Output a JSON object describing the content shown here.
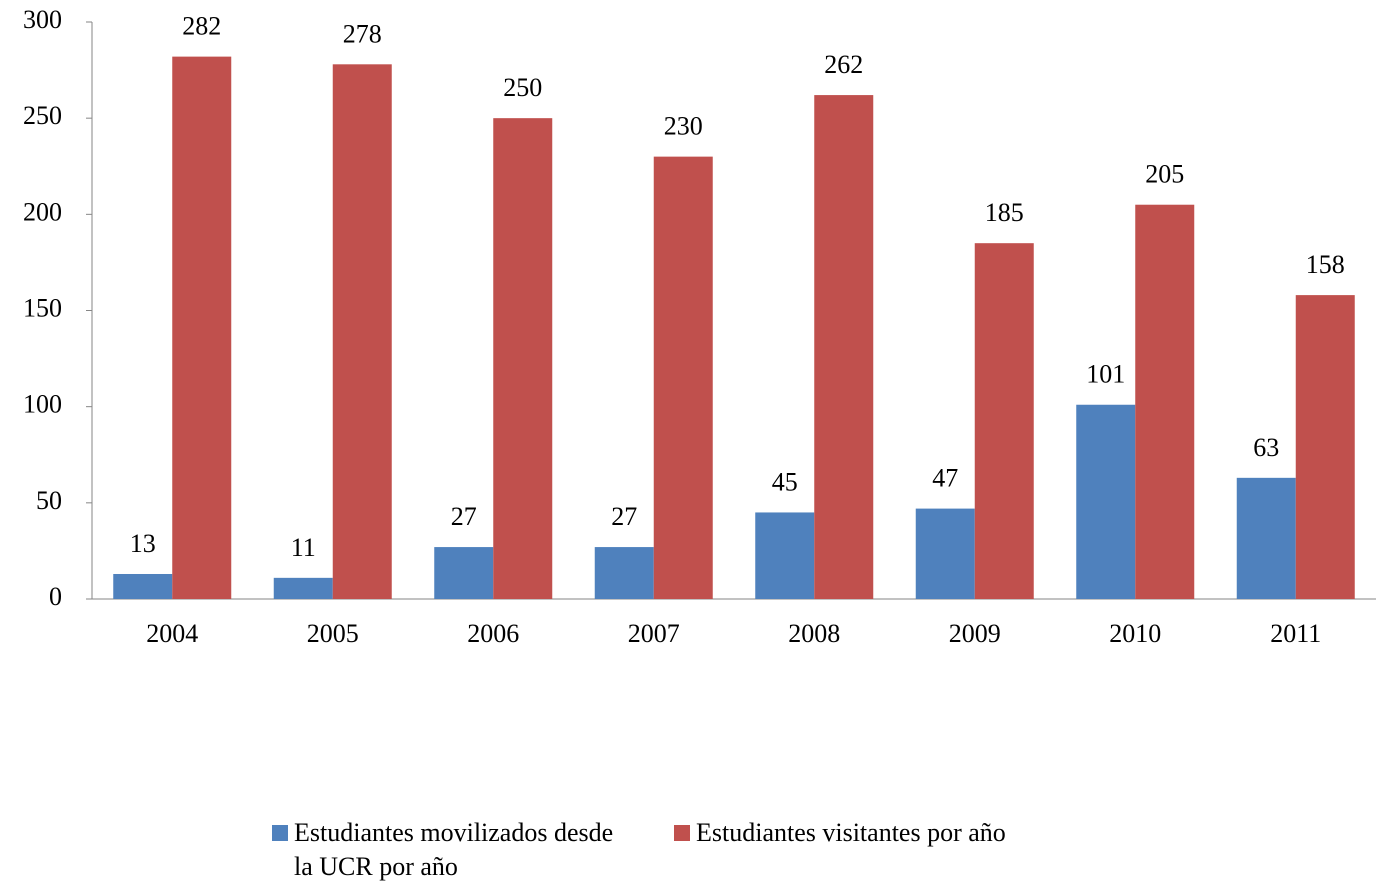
{
  "chart_data": {
    "type": "bar",
    "categories": [
      "2004",
      "2005",
      "2006",
      "2007",
      "2008",
      "2009",
      "2010",
      "2011"
    ],
    "series": [
      {
        "name": "Estudiantes movilizados desde la UCR por año",
        "color": "#4f81bd",
        "values": [
          13,
          11,
          27,
          27,
          45,
          47,
          101,
          63
        ]
      },
      {
        "name": "Estudiantes visitantes por año",
        "color": "#c0504d",
        "values": [
          282,
          278,
          250,
          230,
          262,
          185,
          205,
          158
        ]
      }
    ],
    "ylim": [
      0,
      300
    ],
    "yticks": [
      0,
      50,
      100,
      150,
      200,
      250,
      300
    ],
    "grid": false,
    "legend": "bottom"
  }
}
